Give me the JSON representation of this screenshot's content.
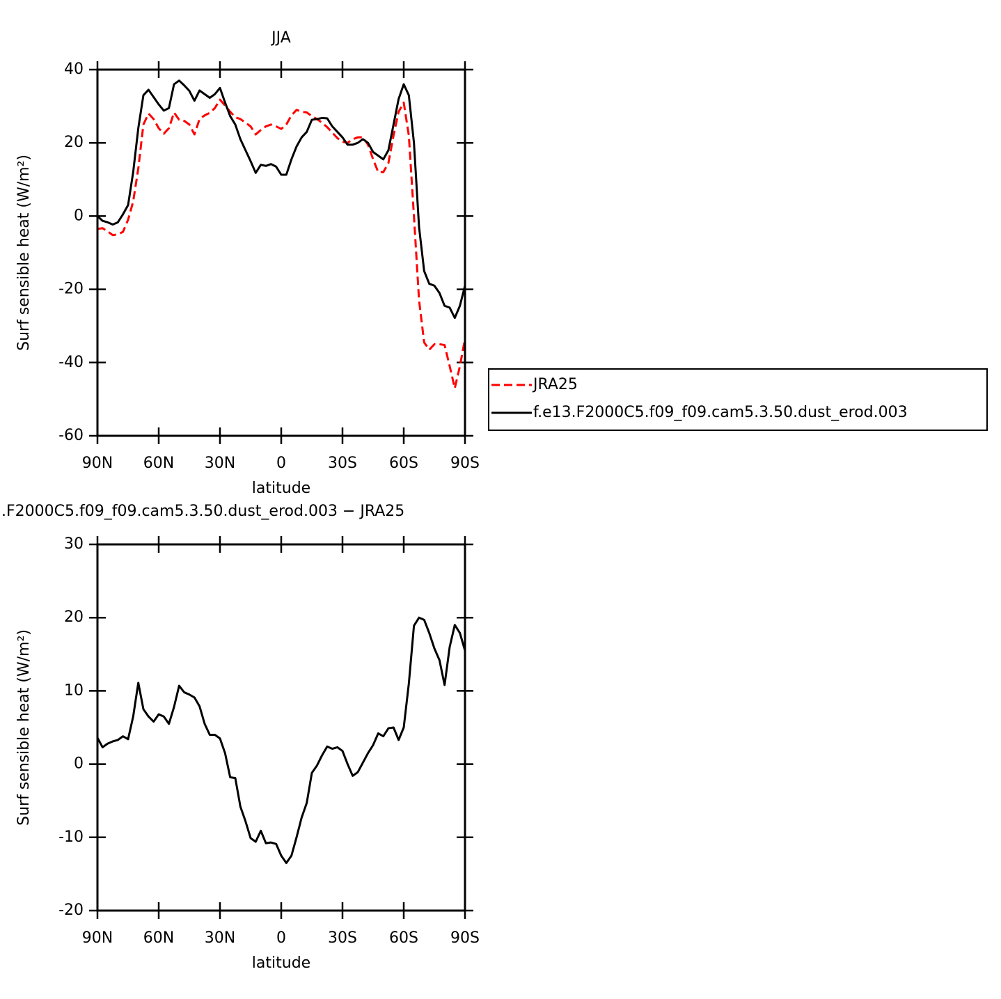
{
  "chart_data": [
    {
      "type": "line",
      "title": "JJA",
      "xlabel": "latitude",
      "ylabel": "Surf sensible heat (W/m²)",
      "xlim": [
        90,
        -90
      ],
      "xticks": [
        {
          "value": 90,
          "label": "90N"
        },
        {
          "value": 60,
          "label": "60N"
        },
        {
          "value": 30,
          "label": "30N"
        },
        0,
        {
          "value": -30,
          "label": "30S"
        },
        {
          "value": -60,
          "label": "60S"
        },
        {
          "value": -90,
          "label": "90S"
        }
      ],
      "ylim": [
        -60,
        40
      ],
      "yticks": [
        -60,
        -40,
        -20,
        0,
        20,
        40
      ],
      "legend": "right",
      "x": [
        90,
        87.5,
        85,
        82.5,
        80,
        77.5,
        75,
        72.5,
        70,
        67.5,
        65,
        62.5,
        60,
        57.5,
        55,
        52.5,
        50,
        47.5,
        45,
        42.5,
        40,
        37.5,
        35,
        32.5,
        30,
        27.5,
        25,
        22.5,
        20,
        17.5,
        15,
        12.5,
        10,
        7.5,
        5,
        2.5,
        0,
        -2.5,
        -5,
        -7.5,
        -10,
        -12.5,
        -15,
        -17.5,
        -20,
        -22.5,
        -25,
        -27.5,
        -30,
        -32.5,
        -35,
        -37.5,
        -40,
        -42.5,
        -45,
        -47.5,
        -50,
        -52.5,
        -55,
        -57.5,
        -60,
        -62.5,
        -65,
        -67.5,
        -70,
        -72.5,
        -75,
        -77.5,
        -80,
        -82.5,
        -85,
        -87.5,
        -90
      ],
      "series": [
        {
          "name": "JRA25",
          "color": "#ff0000",
          "dashed": true,
          "values": [
            -3.5,
            -3.3,
            -4.2,
            -5.2,
            -5,
            -4.3,
            -1,
            4,
            13,
            25,
            28,
            26.5,
            24,
            22.5,
            24,
            28.3,
            26.3,
            26,
            25,
            22.3,
            26.5,
            27.5,
            28.2,
            29.5,
            31.8,
            30.2,
            28.5,
            27,
            26.5,
            25.5,
            24.5,
            22.3,
            23.5,
            24.5,
            25,
            24.5,
            23.8,
            25,
            27.5,
            29,
            28.5,
            28.3,
            27.3,
            26.5,
            25.5,
            24.3,
            22.8,
            21.3,
            20.3,
            20,
            21,
            21.5,
            21.5,
            19.5,
            15.5,
            12,
            12,
            14.5,
            22,
            28.5,
            31,
            22,
            0,
            -23,
            -34.5,
            -36.5,
            -35,
            -35,
            -35.2,
            -41,
            -47,
            -41,
            -33.5
          ]
        },
        {
          "name": "f.e13.F2000C5.f09_f09.cam5.3.50.dust_erod.003",
          "color": "#000000",
          "dashed": false,
          "values": [
            0,
            -1.3,
            -1.7,
            -2.3,
            -1.7,
            0.5,
            3,
            12,
            24,
            33,
            34.5,
            32.5,
            30.5,
            28.8,
            29.5,
            36,
            37,
            35.7,
            34.2,
            31.5,
            34.3,
            33.3,
            32.3,
            33.3,
            35,
            31,
            27.3,
            25,
            21,
            18,
            15,
            11.8,
            14,
            13.7,
            14.2,
            13.5,
            11.3,
            11.3,
            15.5,
            19,
            21.5,
            23,
            26.3,
            26.5,
            26.8,
            26.7,
            24.5,
            23,
            21.5,
            19.5,
            19.5,
            20,
            21,
            20,
            17.5,
            16.5,
            15.5,
            18,
            25,
            32,
            36,
            33,
            20,
            -3,
            -15,
            -18.5,
            -19,
            -21,
            -24.5,
            -25,
            -27.8,
            -24.5,
            -19
          ]
        }
      ]
    },
    {
      "type": "line",
      "title": ".F2000C5.f09_f09.cam5.3.50.dust_erod.003 − JRA25",
      "xlabel": "latitude",
      "ylabel": "Surf sensible heat (W/m²)",
      "xlim": [
        90,
        -90
      ],
      "xticks": [
        {
          "value": 90,
          "label": "90N"
        },
        {
          "value": 60,
          "label": "60N"
        },
        {
          "value": 30,
          "label": "30N"
        },
        0,
        {
          "value": -30,
          "label": "30S"
        },
        {
          "value": -60,
          "label": "60S"
        },
        {
          "value": -90,
          "label": "90S"
        }
      ],
      "ylim": [
        -20,
        30
      ],
      "yticks": [
        -20,
        -10,
        0,
        10,
        20,
        30
      ],
      "x": [
        90,
        87.5,
        85,
        82.5,
        80,
        77.5,
        75,
        72.5,
        70,
        67.5,
        65,
        62.5,
        60,
        57.5,
        55,
        52.5,
        50,
        47.5,
        45,
        42.5,
        40,
        37.5,
        35,
        32.5,
        30,
        27.5,
        25,
        22.5,
        20,
        17.5,
        15,
        12.5,
        10,
        7.5,
        5,
        2.5,
        0,
        -2.5,
        -5,
        -7.5,
        -10,
        -12.5,
        -15,
        -17.5,
        -20,
        -22.5,
        -25,
        -27.5,
        -30,
        -32.5,
        -35,
        -37.5,
        -40,
        -42.5,
        -45,
        -47.5,
        -50,
        -52.5,
        -55,
        -57.5,
        -60,
        -62.5,
        -65,
        -67.5,
        -70,
        -72.5,
        -75,
        -77.5,
        -80,
        -82.5,
        -85,
        -87.5,
        -90
      ],
      "series": [
        {
          "color": "#000000",
          "dashed": false,
          "values": [
            3.6,
            2.3,
            2.8,
            3.1,
            3.3,
            3.8,
            3.4,
            6.5,
            11.1,
            7.5,
            6.5,
            5.8,
            6.8,
            6.5,
            5.5,
            7.8,
            10.7,
            9.8,
            9.5,
            9.1,
            7.9,
            5.5,
            4,
            4,
            3.5,
            1.5,
            -1.8,
            -1.9,
            -5.8,
            -7.8,
            -10.1,
            -10.6,
            -9.1,
            -10.8,
            -10.7,
            -10.9,
            -12.5,
            -13.5,
            -12.5,
            -10,
            -7.3,
            -5.3,
            -1.2,
            -0.2,
            1.2,
            2.4,
            2.1,
            2.3,
            1.8,
            0,
            -1.6,
            -1.1,
            0.2,
            1.5,
            2.6,
            4.2,
            3.8,
            4.9,
            5,
            3.3,
            5,
            11,
            18.9,
            20,
            19.7,
            17.9,
            15.8,
            14.2,
            10.8,
            16,
            19,
            17.9,
            15.5
          ]
        }
      ]
    }
  ]
}
